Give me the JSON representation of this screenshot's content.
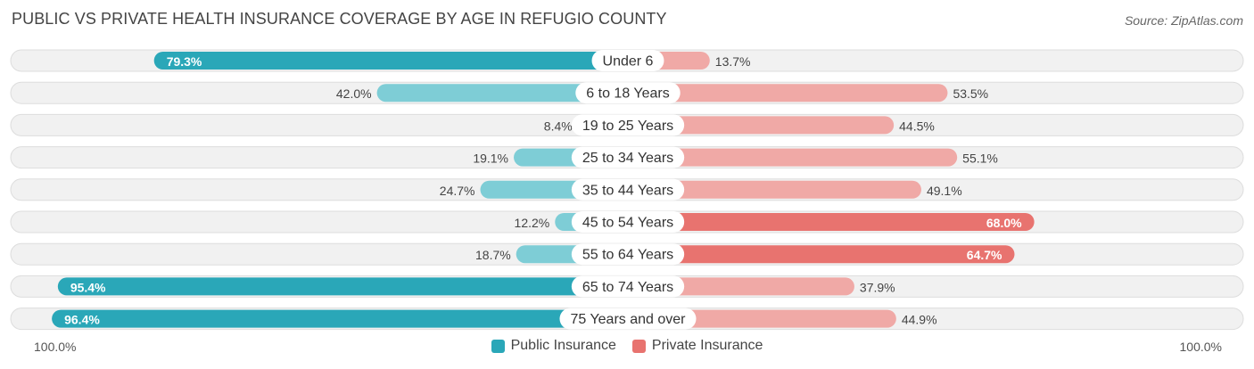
{
  "header": {
    "title": "PUBLIC VS PRIVATE HEALTH INSURANCE COVERAGE BY AGE IN REFUGIO COUNTY",
    "source": "Source: ZipAtlas.com"
  },
  "axis": {
    "left_label": "100.0%",
    "right_label": "100.0%"
  },
  "legend": {
    "public_label": "Public Insurance",
    "private_label": "Private Insurance"
  },
  "colors": {
    "public_dark": "#2aa7b8",
    "public_light": "#7ecdd6",
    "private_dark": "#e8736f",
    "private_light": "#f0a9a6",
    "row_bg": "#f1f1f1",
    "row_border": "#dddddd"
  },
  "chart_data": {
    "type": "bar",
    "orientation": "horizontal-diverging",
    "title": "PUBLIC VS PRIVATE HEALTH INSURANCE COVERAGE BY AGE IN REFUGIO COUNTY",
    "categories": [
      "Under 6",
      "6 to 18 Years",
      "19 to 25 Years",
      "25 to 34 Years",
      "35 to 44 Years",
      "45 to 54 Years",
      "55 to 64 Years",
      "65 to 74 Years",
      "75 Years and over"
    ],
    "series": [
      {
        "name": "Public Insurance",
        "values": [
          79.3,
          42.0,
          8.4,
          19.1,
          24.7,
          12.2,
          18.7,
          95.4,
          96.4
        ],
        "labels": [
          "79.3%",
          "42.0%",
          "8.4%",
          "19.1%",
          "24.7%",
          "12.2%",
          "18.7%",
          "95.4%",
          "96.4%"
        ]
      },
      {
        "name": "Private Insurance",
        "values": [
          13.7,
          53.5,
          44.5,
          55.1,
          49.1,
          68.0,
          64.7,
          37.9,
          44.9
        ],
        "labels": [
          "13.7%",
          "53.5%",
          "44.5%",
          "55.1%",
          "49.1%",
          "68.0%",
          "64.7%",
          "37.9%",
          "44.9%"
        ]
      }
    ],
    "xlim": [
      -100,
      100
    ],
    "legend_position": "bottom-center"
  }
}
